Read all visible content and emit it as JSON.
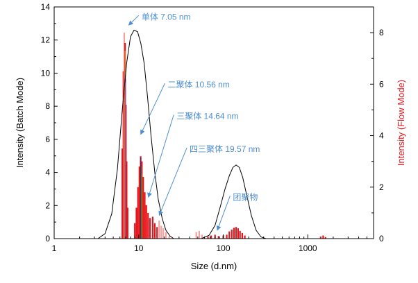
{
  "chart_data": {
    "type": "line",
    "title": "",
    "xlabel": "Size (d.nm)",
    "ylabel_left": "Intensity (Batch Mode)",
    "ylabel_right": "Intensity (Flow Mode)",
    "x_scale": "log",
    "xlim": [
      1,
      6000
    ],
    "ylim_left": [
      0,
      14
    ],
    "ylim_right": [
      0,
      9
    ],
    "x_ticks": [
      {
        "value": 1,
        "label": "1"
      },
      {
        "value": 10,
        "label": "10"
      },
      {
        "value": 100,
        "label": "100"
      },
      {
        "value": 1000,
        "label": "1000"
      }
    ],
    "y_ticks_left": [
      0,
      2,
      4,
      6,
      8,
      10,
      12,
      14
    ],
    "y_ticks_right": [
      0,
      2,
      4,
      6,
      8
    ],
    "grid": false,
    "colors": {
      "batch_line": "#000000",
      "flow_primary": "#e8141b",
      "flow_light": "#f3a0a0",
      "annotation": "#4f8fcf",
      "right_axis_label": "#e8141b"
    },
    "series": [
      {
        "axis": "left",
        "x": [
          3.3,
          4.0,
          4.8,
          5.6,
          6.4,
          7.2,
          8.0,
          8.8,
          9.7,
          10.6,
          11.6,
          12.7,
          14.0,
          15.5,
          17.0,
          19.0,
          21.0,
          23.5,
          26.0,
          30.0,
          40.0,
          55.0,
          68.0,
          80.0,
          92.0,
          105.0,
          118.0,
          130.0,
          142.0,
          155.0,
          170.0,
          190.0,
          215.0,
          245.0,
          280.0,
          320.0
        ],
        "y": [
          0.0,
          0.3,
          1.5,
          4.2,
          7.8,
          10.6,
          12.2,
          12.6,
          12.5,
          11.8,
          10.6,
          8.6,
          6.2,
          4.0,
          2.4,
          1.2,
          0.5,
          0.15,
          0.0,
          0.0,
          0.0,
          0.0,
          0.2,
          0.8,
          1.9,
          3.0,
          3.8,
          4.3,
          4.45,
          4.3,
          3.7,
          2.6,
          1.4,
          0.5,
          0.1,
          0.0
        ]
      }
    ],
    "flow_bars": [
      {
        "x": 6.4,
        "y": 3.5,
        "shade": "primary"
      },
      {
        "x": 6.6,
        "y": 6.5,
        "shade": "primary"
      },
      {
        "x": 6.75,
        "y": 8.0,
        "shade": "light"
      },
      {
        "x": 6.9,
        "y": 7.6,
        "shade": "primary"
      },
      {
        "x": 7.05,
        "y": 5.2,
        "shade": "primary"
      },
      {
        "x": 7.2,
        "y": 3.0,
        "shade": "primary"
      },
      {
        "x": 7.4,
        "y": 1.2,
        "shade": "primary"
      },
      {
        "x": 9.0,
        "y": 0.6,
        "shade": "primary"
      },
      {
        "x": 9.4,
        "y": 1.2,
        "shade": "primary"
      },
      {
        "x": 9.8,
        "y": 2.0,
        "shade": "primary"
      },
      {
        "x": 10.2,
        "y": 2.8,
        "shade": "primary"
      },
      {
        "x": 10.56,
        "y": 3.2,
        "shade": "primary"
      },
      {
        "x": 10.9,
        "y": 3.0,
        "shade": "primary"
      },
      {
        "x": 11.3,
        "y": 2.4,
        "shade": "primary"
      },
      {
        "x": 11.8,
        "y": 1.8,
        "shade": "primary"
      },
      {
        "x": 12.3,
        "y": 1.3,
        "shade": "primary"
      },
      {
        "x": 12.9,
        "y": 1.0,
        "shade": "primary"
      },
      {
        "x": 13.6,
        "y": 0.8,
        "shade": "primary"
      },
      {
        "x": 14.64,
        "y": 0.85,
        "shade": "primary"
      },
      {
        "x": 15.5,
        "y": 0.6,
        "shade": "primary"
      },
      {
        "x": 16.5,
        "y": 0.45,
        "shade": "primary"
      },
      {
        "x": 17.5,
        "y": 0.7,
        "shade": "light"
      },
      {
        "x": 18.5,
        "y": 0.5,
        "shade": "light"
      },
      {
        "x": 19.57,
        "y": 0.4,
        "shade": "light"
      },
      {
        "x": 21.0,
        "y": 0.25,
        "shade": "light"
      },
      {
        "x": 23.0,
        "y": 0.1,
        "shade": "light"
      },
      {
        "x": 48.0,
        "y": 0.25,
        "shade": "light"
      },
      {
        "x": 52.0,
        "y": 0.3,
        "shade": "light"
      },
      {
        "x": 56.0,
        "y": 0.15,
        "shade": "light"
      },
      {
        "x": 66.0,
        "y": 0.08,
        "shade": "primary"
      },
      {
        "x": 72.0,
        "y": 0.12,
        "shade": "primary"
      },
      {
        "x": 80.0,
        "y": 0.15,
        "shade": "primary"
      },
      {
        "x": 88.0,
        "y": 0.1,
        "shade": "primary"
      },
      {
        "x": 100.0,
        "y": 0.12,
        "shade": "primary"
      },
      {
        "x": 110.0,
        "y": 0.15,
        "shade": "primary"
      },
      {
        "x": 118.0,
        "y": 0.28,
        "shade": "primary"
      },
      {
        "x": 126.0,
        "y": 0.35,
        "shade": "primary"
      },
      {
        "x": 134.0,
        "y": 0.42,
        "shade": "primary"
      },
      {
        "x": 142.0,
        "y": 0.45,
        "shade": "primary"
      },
      {
        "x": 150.0,
        "y": 0.4,
        "shade": "primary"
      },
      {
        "x": 158.0,
        "y": 0.3,
        "shade": "primary"
      },
      {
        "x": 168.0,
        "y": 0.22,
        "shade": "primary"
      },
      {
        "x": 180.0,
        "y": 0.12,
        "shade": "primary"
      },
      {
        "x": 1420.0,
        "y": 0.08,
        "shade": "primary"
      },
      {
        "x": 1520.0,
        "y": 0.12,
        "shade": "primary"
      },
      {
        "x": 1620.0,
        "y": 0.06,
        "shade": "primary"
      }
    ],
    "flow_colored_lines": [
      {
        "x": 6.9,
        "y": 7.3,
        "color": "#f0a020"
      },
      {
        "x": 7.0,
        "y": 6.2,
        "color": "#7a2a90"
      },
      {
        "x": 10.56,
        "y": 3.15,
        "color": "#203090"
      },
      {
        "x": 10.75,
        "y": 2.8,
        "color": "#2a8a30"
      },
      {
        "x": 11.0,
        "y": 2.5,
        "color": "#c87010"
      }
    ],
    "annotations": [
      {
        "text": "单体 7.05 nm",
        "text_x": 10.8,
        "text_y": 13.4,
        "arrow_to_x": 7.6,
        "arrow_to_y": 12.9
      },
      {
        "text": "二聚体 10.56 nm",
        "text_x": 22.0,
        "text_y": 9.3,
        "arrow_to_x": 10.56,
        "arrow_to_y": 6.3
      },
      {
        "text": "三聚体 14.64 nm",
        "text_x": 28.0,
        "text_y": 7.4,
        "arrow_to_x": 13.0,
        "arrow_to_y": 2.5
      },
      {
        "text": "四三聚体 19.57 nm",
        "text_x": 40.0,
        "text_y": 5.4,
        "arrow_to_x": 17.5,
        "arrow_to_y": 1.4
      },
      {
        "text": "团聚物",
        "text_x": 130.0,
        "text_y": 2.5,
        "arrow_to_x": 85.0,
        "arrow_to_y": 0.5
      }
    ]
  }
}
